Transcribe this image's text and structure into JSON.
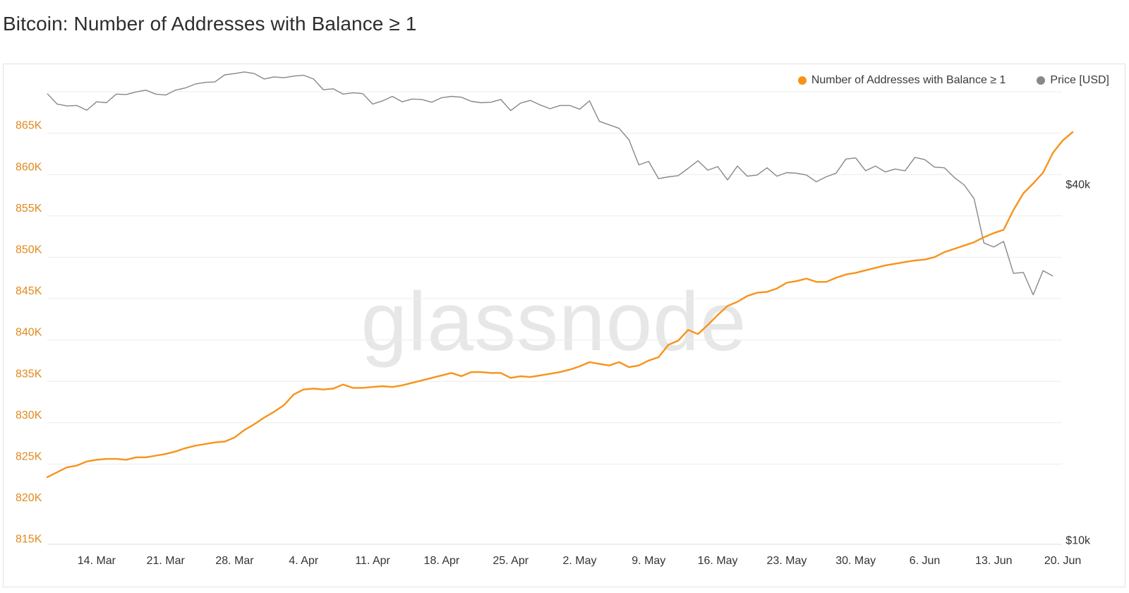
{
  "page": {
    "title": "Bitcoin: Number of Addresses with Balance ≥ 1"
  },
  "watermark": "glassnode",
  "colors": {
    "addresses": "#f7931a",
    "price": "#888888",
    "grid": "#ececec",
    "left_axis": "#e08a1e",
    "text": "#333333"
  },
  "legend": [
    {
      "label": "Number of Addresses with Balance ≥ 1",
      "color": "#f7931a"
    },
    {
      "label": "Price [USD]",
      "color": "#888888"
    }
  ],
  "chart_data": {
    "type": "line",
    "title": "Bitcoin: Number of Addresses with Balance ≥ 1",
    "x_start": "2021-03-09",
    "x_ticks": [
      "14. Mar",
      "21. Mar",
      "28. Mar",
      "4. Apr",
      "11. Apr",
      "18. Apr",
      "25. Apr",
      "2. May",
      "9. May",
      "16. May",
      "23. May",
      "30. May",
      "6. Jun",
      "13. Jun",
      "20. Jun"
    ],
    "y_left": {
      "ylim": [
        815000,
        870000
      ],
      "tick_labels": [
        "815K",
        "820K",
        "825K",
        "830K",
        "835K",
        "840K",
        "845K",
        "850K",
        "855K",
        "860K",
        "865K"
      ]
    },
    "y_right": {
      "scale": "log",
      "tick_labels": [
        "$10k",
        "$40k"
      ]
    },
    "legend_position": "top-right",
    "grid": true,
    "series": [
      {
        "name": "Number of Addresses with Balance ≥ 1",
        "axis": "left",
        "values": [
          822600,
          823200,
          823800,
          824000,
          824500,
          824700,
          824800,
          824800,
          824700,
          825000,
          825000,
          825200,
          825400,
          825700,
          826100,
          826400,
          826600,
          826800,
          826900,
          827400,
          828300,
          829000,
          829800,
          830500,
          831300,
          832600,
          833200,
          833300,
          833200,
          833300,
          833800,
          833400,
          833400,
          833500,
          833600,
          833500,
          833700,
          834000,
          834300,
          834600,
          834900,
          835200,
          834800,
          835300,
          835300,
          835200,
          835200,
          834600,
          834800,
          834700,
          834900,
          835100,
          835300,
          835600,
          836000,
          836500,
          836300,
          836100,
          836500,
          835900,
          836100,
          836700,
          837100,
          838600,
          839100,
          840400,
          839900,
          841000,
          842200,
          843300,
          843800,
          844500,
          844900,
          845000,
          845400,
          846100,
          846300,
          846600,
          846200,
          846200,
          846700,
          847100,
          847300,
          847600,
          847900,
          848200,
          848400,
          848600,
          848800,
          848900,
          849200,
          849800,
          850200,
          850600,
          851000,
          851600,
          852100,
          852500,
          854900,
          856900,
          858100,
          859400,
          861800,
          863300,
          864300
        ]
      },
      {
        "name": "Price [USD]",
        "axis": "right",
        "values": [
          57800,
          55500,
          55100,
          55200,
          54200,
          56000,
          55800,
          57700,
          57600,
          58200,
          58600,
          57700,
          57500,
          58600,
          59100,
          60000,
          60400,
          60500,
          62200,
          62500,
          62900,
          62500,
          61200,
          61700,
          61500,
          61900,
          62100,
          61200,
          58700,
          58900,
          57700,
          58000,
          57800,
          55500,
          56200,
          57200,
          56000,
          56600,
          56500,
          55900,
          56900,
          57200,
          57000,
          56100,
          55800,
          55900,
          56500,
          54100,
          55700,
          56300,
          55300,
          54500,
          55200,
          55200,
          54400,
          56200,
          51900,
          51200,
          50500,
          48300,
          43800,
          44400,
          41500,
          41800,
          42000,
          43200,
          44500,
          42900,
          43500,
          41300,
          43600,
          41900,
          42100,
          43300,
          41900,
          42500,
          42400,
          42100,
          41000,
          41800,
          42400,
          44800,
          45000,
          42800,
          43600,
          42600,
          43100,
          42800,
          45100,
          44700,
          43400,
          43300,
          41700,
          40500,
          38400,
          32300,
          31800,
          32500,
          28700,
          28800,
          26400,
          29000,
          28400
        ]
      }
    ]
  }
}
